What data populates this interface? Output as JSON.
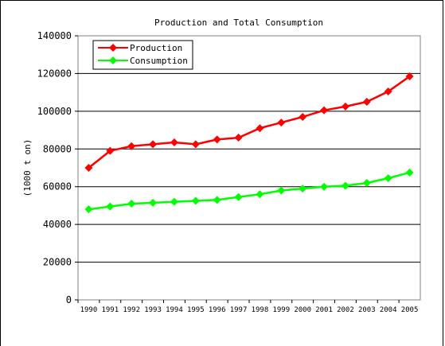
{
  "chart_data": {
    "type": "line",
    "title": "Production and Total Consumption",
    "xlabel": "",
    "ylabel": "(1000 t on)",
    "x": [
      "1990",
      "1991",
      "1992",
      "1993",
      "1994",
      "1995",
      "1996",
      "1997",
      "1998",
      "1999",
      "2000",
      "2001",
      "2002",
      "2003",
      "2004",
      "2005"
    ],
    "ylim": [
      0,
      140000
    ],
    "yticks": [
      "0",
      "20000",
      "40000",
      "60000",
      "80000",
      "100000",
      "120000",
      "140000"
    ],
    "grid": true,
    "legend_position": "top-left",
    "series": [
      {
        "name": "Production",
        "color": "#ff0000",
        "values": [
          70000,
          79000,
          81500,
          82500,
          83500,
          82500,
          85000,
          86000,
          91000,
          94000,
          97000,
          100500,
          102500,
          105000,
          110500,
          118500
        ]
      },
      {
        "name": "Consumption",
        "color": "#00ff00",
        "values": [
          48000,
          49500,
          51000,
          51500,
          52000,
          52500,
          53000,
          54500,
          56000,
          58000,
          59000,
          60000,
          60500,
          62000,
          64500,
          67500
        ]
      }
    ]
  }
}
